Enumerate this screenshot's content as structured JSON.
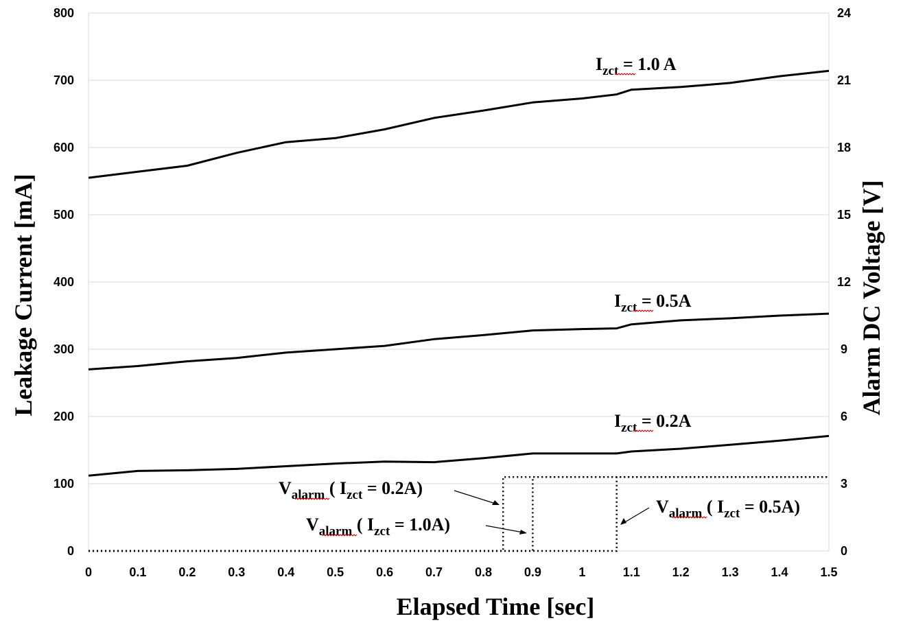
{
  "chart_data": {
    "type": "line",
    "xlabel": "Elapsed Time [sec]",
    "ylabel": "Leakage Current [mA]",
    "y2label": "Alarm DC Voltage [V]",
    "xlim": [
      0,
      1.5
    ],
    "ylim": [
      0,
      800
    ],
    "y2lim": [
      0,
      24
    ],
    "grid": "horizontal",
    "xticks": [
      "0",
      "0.1",
      "0.2",
      "0.3",
      "0.4",
      "0.5",
      "0.6",
      "0.7",
      "0.8",
      "0.9",
      "1",
      "1.1",
      "1.2",
      "1.3",
      "1.4",
      "1.5"
    ],
    "yticks": [
      "0",
      "100",
      "200",
      "300",
      "400",
      "500",
      "600",
      "700",
      "800"
    ],
    "y2ticks": [
      "0",
      "3",
      "6",
      "9",
      "12",
      "15",
      "18",
      "21",
      "24"
    ],
    "series": [
      {
        "key": "i10",
        "axis": "left",
        "x": [
          0,
          0.1,
          0.2,
          0.3,
          0.4,
          0.5,
          0.6,
          0.7,
          0.8,
          0.9,
          1.0,
          1.07,
          1.1,
          1.2,
          1.3,
          1.4,
          1.5
        ],
        "y": [
          555,
          564,
          573,
          592,
          608,
          614,
          627,
          644,
          655,
          667,
          673,
          679,
          686,
          690,
          696,
          706,
          714
        ]
      },
      {
        "key": "i05",
        "axis": "left",
        "x": [
          0,
          0.1,
          0.2,
          0.3,
          0.4,
          0.5,
          0.6,
          0.7,
          0.8,
          0.9,
          1.0,
          1.07,
          1.1,
          1.2,
          1.3,
          1.4,
          1.5
        ],
        "y": [
          270,
          275,
          282,
          287,
          295,
          300,
          305,
          315,
          321,
          328,
          330,
          331,
          337,
          343,
          346,
          350,
          353
        ]
      },
      {
        "key": "i02",
        "axis": "left",
        "x": [
          0,
          0.1,
          0.2,
          0.3,
          0.4,
          0.5,
          0.6,
          0.7,
          0.8,
          0.9,
          1.0,
          1.07,
          1.1,
          1.2,
          1.3,
          1.4,
          1.5
        ],
        "y": [
          112,
          119,
          120,
          122,
          126,
          130,
          133,
          132,
          138,
          145,
          145,
          145,
          148,
          152,
          158,
          164,
          171
        ]
      },
      {
        "key": "v02",
        "axis": "right",
        "style": "dotted",
        "x": [
          0,
          0.84,
          0.84,
          1.5
        ],
        "y": [
          0,
          0,
          3.3,
          3.3
        ]
      },
      {
        "key": "v10",
        "axis": "right",
        "style": "dotted",
        "x": [
          0,
          0.9,
          0.9,
          1.5
        ],
        "y": [
          0,
          0,
          3.3,
          3.3
        ]
      },
      {
        "key": "v05",
        "axis": "right",
        "style": "dotted",
        "x": [
          0,
          1.07,
          1.07,
          1.5
        ],
        "y": [
          0,
          0,
          3.3,
          3.3
        ]
      }
    ],
    "annotations": {
      "i10": {
        "main": "I",
        "sub": "zct",
        "rest": " = 1.0 A"
      },
      "i05": {
        "main": "I",
        "sub": "zct",
        "rest": " = 0.5A"
      },
      "i02": {
        "main": "I",
        "sub": "zct",
        "rest": " = 0.2A"
      },
      "v02": {
        "main": "V",
        "sub": "alarm",
        "mid": " ( I",
        "sub2": "zct",
        "rest": " = 0.2A)"
      },
      "v10": {
        "main": "V",
        "sub": "alarm",
        "mid": " ( I",
        "sub2": "zct",
        "rest": " = 1.0A)"
      },
      "v05": {
        "main": "V",
        "sub": "alarm",
        "mid": " ( I",
        "sub2": "zct",
        "rest": " = 0.5A)"
      }
    }
  }
}
